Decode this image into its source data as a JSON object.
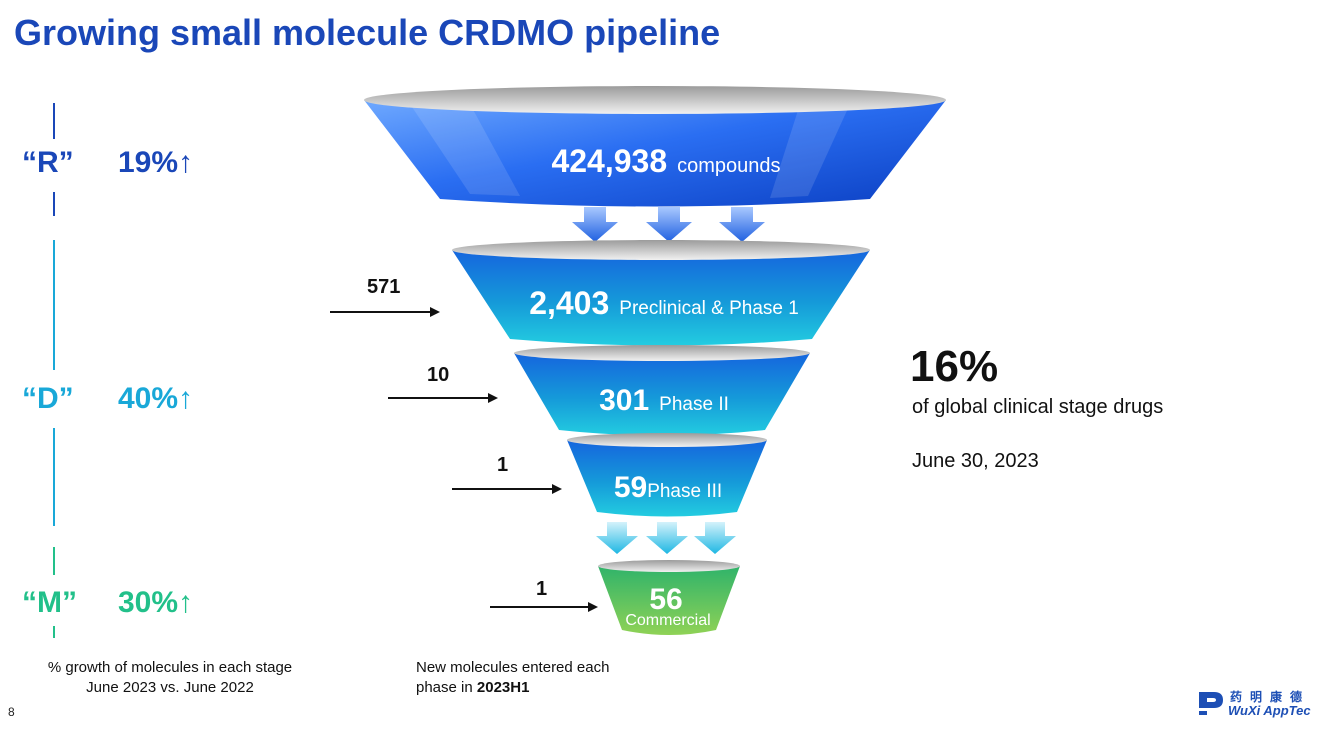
{
  "title": "Growing small molecule CRDMO pipeline",
  "stages": [
    {
      "letter": "“R”",
      "pct": "19%↑",
      "color": "#1a47b8"
    },
    {
      "letter": "“D”",
      "pct": "40%↑",
      "color": "#19a8d8"
    },
    {
      "letter": "“M”",
      "pct": "30%↑",
      "color": "#22c08a"
    }
  ],
  "left_caption": {
    "line1": "% growth of molecules in each stage",
    "line2": "June 2023 vs. June 2022"
  },
  "middle_caption": {
    "line1": "New molecules entered each",
    "line2_prefix": "phase in ",
    "line2_bold": "2023H1"
  },
  "funnel": [
    {
      "value": "424,938",
      "label": "compounds",
      "new": ""
    },
    {
      "value": "2,403",
      "label": "Preclinical & Phase 1",
      "new": "571"
    },
    {
      "value": "301",
      "label": "Phase II",
      "new": "10"
    },
    {
      "value": "59",
      "label": "Phase III",
      "new": "1"
    },
    {
      "value": "56",
      "label": "Commercial",
      "new": "1"
    }
  ],
  "share": {
    "pct": "16%",
    "text": "of global clinical stage drugs",
    "date": "June 30, 2023"
  },
  "page_number": "8",
  "logo": {
    "cn": "药明康德",
    "en": "WuXi AppTec"
  },
  "colors": {
    "blue": "#1a47b8",
    "cyan": "#19a8d8",
    "green": "#22c08a"
  }
}
